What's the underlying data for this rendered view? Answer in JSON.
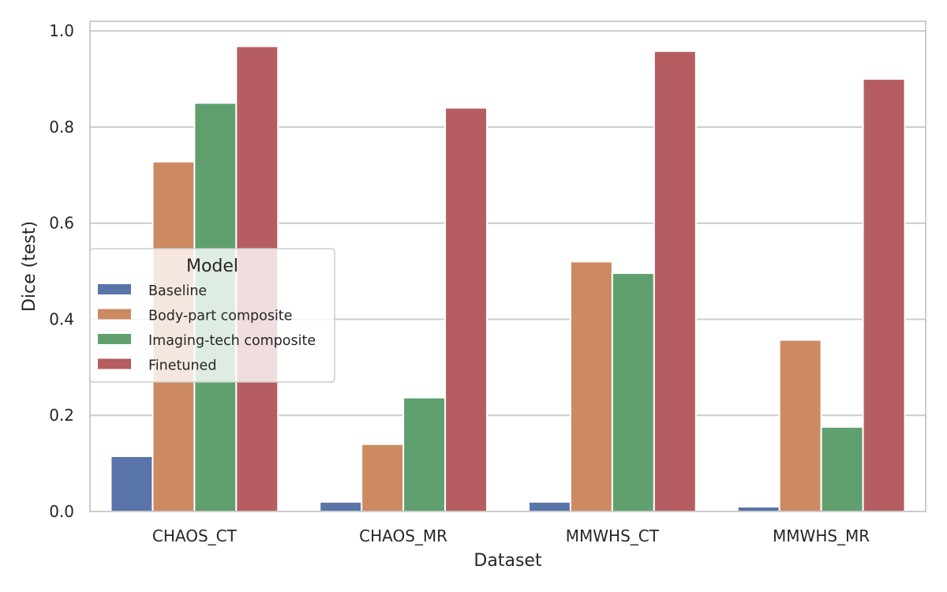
{
  "chart_data": {
    "type": "bar",
    "title": "",
    "xlabel": "Dataset",
    "ylabel": "Dice (test)",
    "ylim": [
      0,
      1.02
    ],
    "yticks": [
      "0.0",
      "0.2",
      "0.4",
      "0.6",
      "0.8",
      "1.0"
    ],
    "grid": true,
    "categories": [
      "CHAOS_CT",
      "CHAOS_MR",
      "MMWHS_CT",
      "MMWHS_MR"
    ],
    "legend": {
      "title": "Model",
      "placement": "center-left"
    },
    "series": [
      {
        "name": "Baseline",
        "color": "#5874a8",
        "values": [
          0.115,
          0.02,
          0.02,
          0.01
        ]
      },
      {
        "name": "Body-part composite",
        "color": "#cd8962",
        "values": [
          0.728,
          0.14,
          0.52,
          0.357
        ]
      },
      {
        "name": "Imaging-tech composite",
        "color": "#5fa06e",
        "values": [
          0.85,
          0.237,
          0.496,
          0.176
        ]
      },
      {
        "name": "Finetuned",
        "color": "#b55d60",
        "values": [
          0.968,
          0.84,
          0.958,
          0.9
        ]
      }
    ]
  }
}
